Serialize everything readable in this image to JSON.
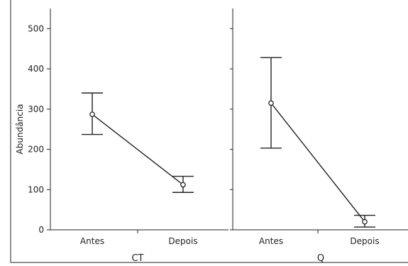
{
  "chart_data": {
    "type": "line",
    "ylabel": "Abundância",
    "ylim": [
      0,
      550
    ],
    "yticks": [
      0,
      100,
      200,
      300,
      400,
      500
    ],
    "grid": false,
    "panels": [
      {
        "title": "CT",
        "categories": [
          "Antes",
          "Depois"
        ],
        "values": [
          287,
          112
        ],
        "error_lower": [
          237,
          93
        ],
        "error_upper": [
          340,
          133
        ]
      },
      {
        "title": "Q",
        "categories": [
          "Antes",
          "Depois"
        ],
        "values": [
          315,
          20
        ],
        "error_lower": [
          203,
          7
        ],
        "error_upper": [
          428,
          36
        ]
      }
    ]
  }
}
